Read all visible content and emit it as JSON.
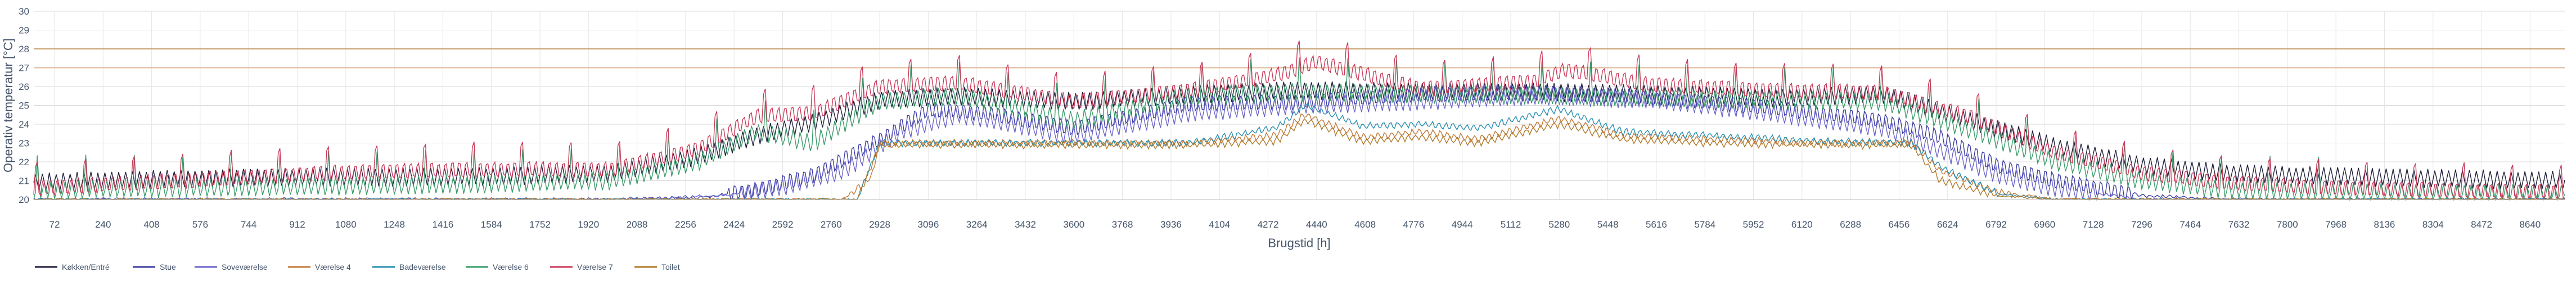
{
  "chart_data": {
    "type": "line",
    "xlabel": "Brugstid [h]",
    "ylabel": "Operativ temperatur [°C]",
    "xlim": [
      0,
      8760
    ],
    "ylim": [
      20,
      30
    ],
    "y_ticks": [
      20,
      21,
      22,
      23,
      24,
      25,
      26,
      27,
      28,
      29,
      30
    ],
    "x_ticks": [
      72,
      240,
      408,
      576,
      744,
      912,
      1080,
      1248,
      1416,
      1584,
      1752,
      1920,
      2088,
      2256,
      2424,
      2592,
      2760,
      2928,
      3096,
      3264,
      3432,
      3600,
      3768,
      3936,
      4104,
      4272,
      4440,
      4608,
      4776,
      4944,
      5112,
      5280,
      5448,
      5616,
      5784,
      5952,
      6120,
      6288,
      6456,
      6624,
      6792,
      6960,
      7128,
      7296,
      7464,
      7632,
      7800,
      7968,
      8136,
      8304,
      8472,
      8640
    ],
    "grid": true,
    "legend_position": "bottom-left",
    "reference_lines": [
      {
        "y": 27,
        "color": "#e0b89a"
      },
      {
        "y": 28,
        "color": "#c9a070"
      }
    ],
    "series": [
      {
        "name": "Køkken/Entré",
        "color": "#1f1f3d",
        "points": [
          [
            0,
            20.9
          ],
          [
            500,
            21.1
          ],
          [
            1000,
            21.2
          ],
          [
            1500,
            21.2
          ],
          [
            2000,
            21.4
          ],
          [
            2300,
            22.3
          ],
          [
            2500,
            23.4
          ],
          [
            2700,
            24.1
          ],
          [
            2928,
            25.3
          ],
          [
            3200,
            25.5
          ],
          [
            3600,
            25.2
          ],
          [
            4000,
            25.6
          ],
          [
            4400,
            25.8
          ],
          [
            4800,
            25.7
          ],
          [
            5200,
            25.7
          ],
          [
            5600,
            25.6
          ],
          [
            6000,
            25.4
          ],
          [
            6400,
            25.6
          ],
          [
            6700,
            24.2
          ],
          [
            7000,
            22.8
          ],
          [
            7300,
            21.8
          ],
          [
            7600,
            21.4
          ],
          [
            8000,
            21.2
          ],
          [
            8400,
            21.1
          ],
          [
            8760,
            21.0
          ]
        ]
      },
      {
        "name": "Stue",
        "color": "#3c3ca0",
        "points": [
          [
            0,
            20.0
          ],
          [
            500,
            20.0
          ],
          [
            1000,
            20.0
          ],
          [
            1500,
            20.0
          ],
          [
            2000,
            20.0
          ],
          [
            2300,
            20.1
          ],
          [
            2500,
            20.5
          ],
          [
            2700,
            21.3
          ],
          [
            2928,
            23.2
          ],
          [
            3100,
            24.8
          ],
          [
            3300,
            24.6
          ],
          [
            3600,
            23.8
          ],
          [
            4000,
            25.1
          ],
          [
            4400,
            25.2
          ],
          [
            4800,
            25.6
          ],
          [
            5200,
            25.7
          ],
          [
            5600,
            25.4
          ],
          [
            6000,
            24.9
          ],
          [
            6400,
            24.2
          ],
          [
            6600,
            23.3
          ],
          [
            6800,
            21.8
          ],
          [
            7000,
            21.0
          ],
          [
            7300,
            20.2
          ],
          [
            7600,
            20.0
          ],
          [
            8000,
            20.0
          ],
          [
            8760,
            20.0
          ]
        ]
      },
      {
        "name": "Soveværelse",
        "color": "#6a64c8",
        "points": [
          [
            0,
            20.0
          ],
          [
            1000,
            20.0
          ],
          [
            2000,
            20.0
          ],
          [
            2400,
            20.2
          ],
          [
            2600,
            20.7
          ],
          [
            2800,
            21.5
          ],
          [
            3000,
            23.6
          ],
          [
            3200,
            24.5
          ],
          [
            3600,
            23.4
          ],
          [
            4000,
            24.6
          ],
          [
            4400,
            25.0
          ],
          [
            4800,
            25.2
          ],
          [
            5200,
            25.5
          ],
          [
            5600,
            25.3
          ],
          [
            6000,
            24.6
          ],
          [
            6400,
            23.8
          ],
          [
            6600,
            22.6
          ],
          [
            6800,
            21.3
          ],
          [
            7000,
            20.6
          ],
          [
            7300,
            20.0
          ],
          [
            8760,
            20.0
          ]
        ]
      },
      {
        "name": "Værelse 4",
        "color": "#c27a3a",
        "points": [
          [
            0,
            20.0
          ],
          [
            2800,
            20.0
          ],
          [
            2900,
            21.2
          ],
          [
            2928,
            23.0
          ],
          [
            3500,
            23.0
          ],
          [
            4000,
            23.0
          ],
          [
            4300,
            23.4
          ],
          [
            4400,
            24.5
          ],
          [
            4600,
            23.3
          ],
          [
            4800,
            23.6
          ],
          [
            5000,
            23.2
          ],
          [
            5280,
            24.3
          ],
          [
            5500,
            23.4
          ],
          [
            5800,
            23.2
          ],
          [
            6200,
            23.0
          ],
          [
            6500,
            23.0
          ],
          [
            6600,
            21.5
          ],
          [
            6800,
            20.4
          ],
          [
            7000,
            20.0
          ],
          [
            8760,
            20.0
          ]
        ]
      },
      {
        "name": "Badeværelse",
        "color": "#2a8fb0",
        "points": [
          [
            0,
            20.0
          ],
          [
            2850,
            20.0
          ],
          [
            2928,
            23.0
          ],
          [
            4000,
            23.0
          ],
          [
            4300,
            23.8
          ],
          [
            4400,
            25.0
          ],
          [
            4600,
            23.9
          ],
          [
            4800,
            24.0
          ],
          [
            5000,
            23.8
          ],
          [
            5280,
            24.8
          ],
          [
            5500,
            23.6
          ],
          [
            5800,
            23.4
          ],
          [
            6200,
            23.1
          ],
          [
            6500,
            23.0
          ],
          [
            6600,
            21.7
          ],
          [
            6800,
            20.3
          ],
          [
            7000,
            20.0
          ],
          [
            8760,
            20.0
          ]
        ]
      },
      {
        "name": "Værelse 6",
        "color": "#3a9c6a",
        "points": [
          [
            0,
            20.5
          ],
          [
            500,
            20.6
          ],
          [
            1000,
            20.7
          ],
          [
            1500,
            20.8
          ],
          [
            2000,
            21.0
          ],
          [
            2300,
            22.0
          ],
          [
            2500,
            23.6
          ],
          [
            2700,
            23.0
          ],
          [
            2928,
            25.2
          ],
          [
            3200,
            25.5
          ],
          [
            3600,
            24.2
          ],
          [
            4000,
            25.5
          ],
          [
            4400,
            25.7
          ],
          [
            4800,
            25.6
          ],
          [
            5200,
            25.5
          ],
          [
            5600,
            25.4
          ],
          [
            6000,
            25.3
          ],
          [
            6400,
            25.2
          ],
          [
            6700,
            23.7
          ],
          [
            7000,
            22.0
          ],
          [
            7300,
            21.0
          ],
          [
            7600,
            20.5
          ],
          [
            8000,
            20.4
          ],
          [
            8760,
            20.3
          ]
        ]
      },
      {
        "name": "Værelse 7",
        "color": "#c83a5a",
        "points": [
          [
            0,
            20.6
          ],
          [
            500,
            21.0
          ],
          [
            1000,
            21.4
          ],
          [
            1500,
            21.6
          ],
          [
            2000,
            21.6
          ],
          [
            2300,
            22.7
          ],
          [
            2500,
            24.4
          ],
          [
            2700,
            24.6
          ],
          [
            2928,
            26.0
          ],
          [
            3200,
            26.2
          ],
          [
            3600,
            25.2
          ],
          [
            4000,
            25.8
          ],
          [
            4300,
            26.6
          ],
          [
            4440,
            27.3
          ],
          [
            4800,
            25.9
          ],
          [
            5200,
            26.3
          ],
          [
            5300,
            26.9
          ],
          [
            5600,
            26.1
          ],
          [
            6000,
            25.8
          ],
          [
            6400,
            25.7
          ],
          [
            6700,
            24.4
          ],
          [
            7000,
            22.5
          ],
          [
            7300,
            21.4
          ],
          [
            7600,
            20.9
          ],
          [
            8000,
            20.6
          ],
          [
            8760,
            20.4
          ]
        ]
      },
      {
        "name": "Toilet",
        "color": "#b07a2a",
        "points": [
          [
            0,
            20.0
          ],
          [
            2850,
            20.0
          ],
          [
            2928,
            22.9
          ],
          [
            4000,
            22.9
          ],
          [
            4300,
            23.1
          ],
          [
            4400,
            24.2
          ],
          [
            4600,
            23.1
          ],
          [
            4800,
            23.3
          ],
          [
            5000,
            23.0
          ],
          [
            5280,
            24.0
          ],
          [
            5500,
            23.2
          ],
          [
            5800,
            23.0
          ],
          [
            6200,
            22.9
          ],
          [
            6500,
            22.9
          ],
          [
            6600,
            21.0
          ],
          [
            6800,
            20.2
          ],
          [
            7000,
            20.0
          ],
          [
            8760,
            20.0
          ]
        ]
      }
    ]
  }
}
